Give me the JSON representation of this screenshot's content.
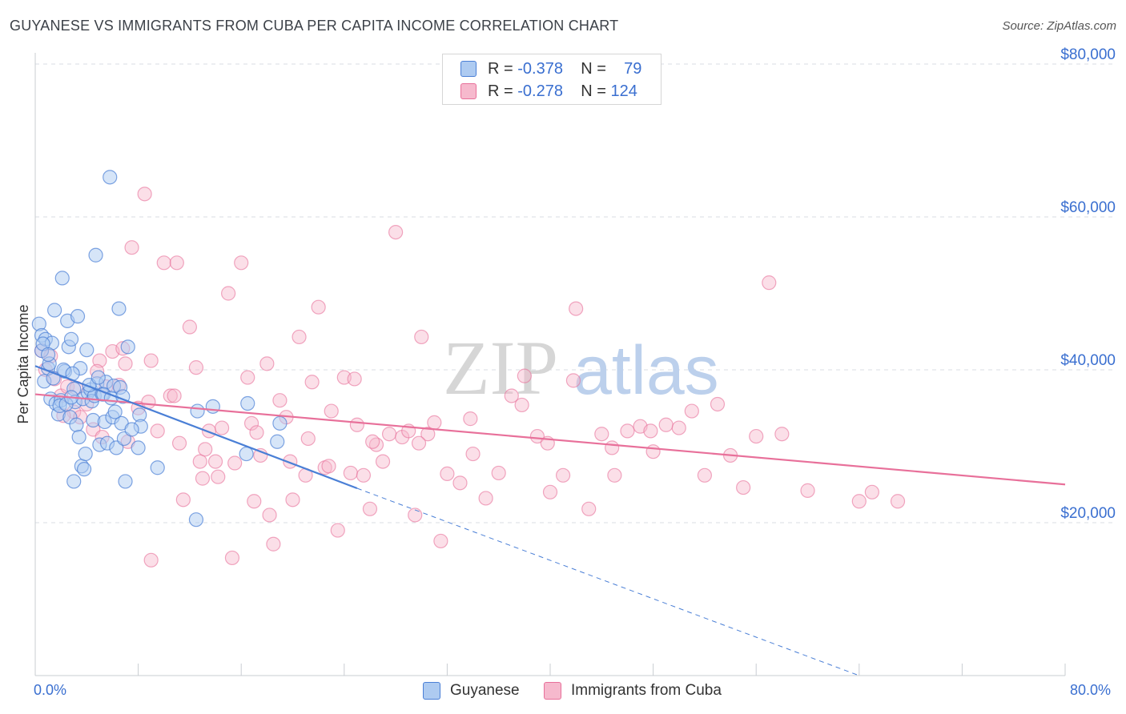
{
  "title": "GUYANESE VS IMMIGRANTS FROM CUBA PER CAPITA INCOME CORRELATION CHART",
  "source": "Source: ZipAtlas.com",
  "watermark": {
    "zip": "ZIP",
    "atlas": "atlas"
  },
  "legend_top": {
    "rows": [
      {
        "r_label": "R =",
        "r_value": "-0.378",
        "n_label": "N =",
        "n_value": "79"
      },
      {
        "r_label": "R =",
        "r_value": "-0.278",
        "n_label": "N =",
        "n_value": "124"
      }
    ]
  },
  "x_min_label": "0.0%",
  "x_max_label": "80.0%",
  "colors": {
    "blue": "#4a7fd6",
    "blue_fill": "#aecbf1",
    "pink": "#e8709a",
    "pink_fill": "#f6b9cd",
    "tick": "#3a6fd0",
    "grid": "#d9dde3"
  },
  "chart_data": {
    "type": "scatter",
    "title": "GUYANESE VS IMMIGRANTS FROM CUBA PER CAPITA INCOME CORRELATION CHART",
    "xlabel": "",
    "ylabel": "Per Capita Income",
    "xlim": [
      0,
      80
    ],
    "ylim": [
      0,
      80000
    ],
    "yticks": [
      20000,
      40000,
      60000,
      80000
    ],
    "ytick_labels": [
      "$20,000",
      "$40,000",
      "$60,000",
      "$80,000"
    ],
    "legend": [
      "Guyanese",
      "Immigrants from Cuba"
    ],
    "series": [
      {
        "name": "Guyanese",
        "r": -0.378,
        "n": 79,
        "trend": {
          "x": [
            0,
            25
          ],
          "y": [
            40500,
            24500
          ],
          "dashed_to": [
            64,
            0
          ]
        },
        "points": [
          [
            0.3,
            46000
          ],
          [
            0.5,
            44500
          ],
          [
            0.5,
            42500
          ],
          [
            0.8,
            44000
          ],
          [
            1.0,
            40200
          ],
          [
            0.7,
            38500
          ],
          [
            1.2,
            36200
          ],
          [
            1.3,
            43500
          ],
          [
            1.5,
            47800
          ],
          [
            1.6,
            35600
          ],
          [
            1.8,
            34200
          ],
          [
            2.0,
            36000
          ],
          [
            2.1,
            52000
          ],
          [
            2.3,
            39800
          ],
          [
            2.5,
            46400
          ],
          [
            2.6,
            43000
          ],
          [
            2.7,
            33800
          ],
          [
            2.8,
            44000
          ],
          [
            3.0,
            37500
          ],
          [
            3.1,
            35800
          ],
          [
            3.2,
            32800
          ],
          [
            3.3,
            47000
          ],
          [
            3.5,
            40200
          ],
          [
            3.6,
            27400
          ],
          [
            3.7,
            36200
          ],
          [
            3.9,
            29000
          ],
          [
            4.0,
            42600
          ],
          [
            4.1,
            37000
          ],
          [
            4.3,
            37400
          ],
          [
            4.4,
            35900
          ],
          [
            4.5,
            33400
          ],
          [
            4.6,
            36600
          ],
          [
            4.7,
            55000
          ],
          [
            4.8,
            38200
          ],
          [
            5.0,
            30200
          ],
          [
            5.2,
            36800
          ],
          [
            5.4,
            33200
          ],
          [
            5.5,
            38400
          ],
          [
            5.6,
            30400
          ],
          [
            5.8,
            65200
          ],
          [
            6.0,
            33800
          ],
          [
            6.1,
            37900
          ],
          [
            6.3,
            29800
          ],
          [
            6.5,
            48000
          ],
          [
            6.7,
            33000
          ],
          [
            6.9,
            31000
          ],
          [
            7.0,
            25400
          ],
          [
            7.2,
            43000
          ],
          [
            8.0,
            29800
          ],
          [
            8.1,
            34100
          ],
          [
            8.2,
            32600
          ],
          [
            9.5,
            27200
          ],
          [
            12.5,
            20400
          ],
          [
            12.6,
            34600
          ],
          [
            13.8,
            35200
          ],
          [
            16.5,
            35600
          ],
          [
            18.8,
            30600
          ],
          [
            19.0,
            33000
          ],
          [
            16.4,
            29000
          ],
          [
            0.6,
            43400
          ],
          [
            1.1,
            40800
          ],
          [
            1.4,
            38900
          ],
          [
            1.9,
            35300
          ],
          [
            2.2,
            40000
          ],
          [
            2.4,
            35500
          ],
          [
            2.9,
            39500
          ],
          [
            3.4,
            31200
          ],
          [
            3.8,
            27000
          ],
          [
            4.2,
            38000
          ],
          [
            4.9,
            39000
          ],
          [
            5.3,
            36800
          ],
          [
            5.9,
            36300
          ],
          [
            6.2,
            34500
          ],
          [
            6.6,
            37700
          ],
          [
            6.8,
            36500
          ],
          [
            7.5,
            32200
          ],
          [
            2.8,
            36400
          ],
          [
            1.0,
            42000
          ],
          [
            3.0,
            25400
          ]
        ]
      },
      {
        "name": "Immigrants from Cuba",
        "r": -0.278,
        "n": 124,
        "trend": {
          "x": [
            0,
            80
          ],
          "y": [
            36800,
            25000
          ]
        },
        "points": [
          [
            0.5,
            42500
          ],
          [
            0.8,
            40000
          ],
          [
            1.2,
            41800
          ],
          [
            1.5,
            38800
          ],
          [
            2.0,
            36600
          ],
          [
            2.5,
            37800
          ],
          [
            3.0,
            34500
          ],
          [
            3.5,
            33800
          ],
          [
            4.0,
            35500
          ],
          [
            4.5,
            32200
          ],
          [
            5.0,
            41200
          ],
          [
            5.5,
            37800
          ],
          [
            6.0,
            42400
          ],
          [
            6.5,
            38000
          ],
          [
            7.0,
            40800
          ],
          [
            7.5,
            56000
          ],
          [
            8.0,
            35000
          ],
          [
            8.5,
            63000
          ],
          [
            9.0,
            41200
          ],
          [
            9.5,
            32000
          ],
          [
            10.0,
            54000
          ],
          [
            10.5,
            36600
          ],
          [
            11.0,
            54000
          ],
          [
            11.5,
            23000
          ],
          [
            12.0,
            45600
          ],
          [
            12.5,
            40300
          ],
          [
            13.0,
            25800
          ],
          [
            13.5,
            32000
          ],
          [
            14.0,
            28000
          ],
          [
            14.5,
            32400
          ],
          [
            15.0,
            50000
          ],
          [
            15.5,
            27800
          ],
          [
            16.0,
            54000
          ],
          [
            16.5,
            39000
          ],
          [
            17.0,
            22800
          ],
          [
            17.5,
            28800
          ],
          [
            18.0,
            40800
          ],
          [
            18.5,
            17200
          ],
          [
            19.0,
            36000
          ],
          [
            19.5,
            33800
          ],
          [
            20.0,
            23000
          ],
          [
            20.5,
            44300
          ],
          [
            21.0,
            26200
          ],
          [
            21.5,
            38400
          ],
          [
            22.0,
            48200
          ],
          [
            22.5,
            27200
          ],
          [
            23.0,
            34600
          ],
          [
            23.5,
            19000
          ],
          [
            24.0,
            39000
          ],
          [
            24.5,
            26500
          ],
          [
            25.0,
            32800
          ],
          [
            25.5,
            26200
          ],
          [
            26.0,
            21800
          ],
          [
            26.5,
            30200
          ],
          [
            27.0,
            28000
          ],
          [
            27.5,
            31600
          ],
          [
            28.0,
            58000
          ],
          [
            28.5,
            31200
          ],
          [
            29.0,
            32000
          ],
          [
            29.5,
            21000
          ],
          [
            30.0,
            44300
          ],
          [
            30.5,
            31600
          ],
          [
            31.0,
            33100
          ],
          [
            31.5,
            17600
          ],
          [
            32.0,
            26400
          ],
          [
            33.0,
            25200
          ],
          [
            34.0,
            29000
          ],
          [
            35.0,
            23200
          ],
          [
            36.0,
            26500
          ],
          [
            37.0,
            36600
          ],
          [
            38.0,
            39200
          ],
          [
            39.0,
            31300
          ],
          [
            40.0,
            24000
          ],
          [
            41.0,
            26200
          ],
          [
            42.0,
            48000
          ],
          [
            43.0,
            21800
          ],
          [
            44.0,
            31600
          ],
          [
            45.0,
            26200
          ],
          [
            46.0,
            32000
          ],
          [
            47.0,
            32600
          ],
          [
            48.0,
            29300
          ],
          [
            49.0,
            32800
          ],
          [
            50.0,
            32400
          ],
          [
            51.0,
            34600
          ],
          [
            52.0,
            26200
          ],
          [
            53.0,
            35500
          ],
          [
            54.0,
            28800
          ],
          [
            55.0,
            24600
          ],
          [
            56.0,
            31300
          ],
          [
            57.0,
            51400
          ],
          [
            58.0,
            31600
          ],
          [
            60.0,
            24200
          ],
          [
            64.0,
            22800
          ],
          [
            65.0,
            24000
          ],
          [
            67.0,
            22800
          ],
          [
            9.0,
            15100
          ],
          [
            15.3,
            15400
          ],
          [
            3.2,
            37600
          ],
          [
            4.8,
            39800
          ],
          [
            6.8,
            42800
          ],
          [
            8.8,
            35800
          ],
          [
            10.8,
            36600
          ],
          [
            12.8,
            28000
          ],
          [
            14.2,
            26000
          ],
          [
            16.8,
            33000
          ],
          [
            18.2,
            21000
          ],
          [
            19.8,
            28000
          ],
          [
            21.2,
            31000
          ],
          [
            22.8,
            27400
          ],
          [
            24.8,
            38800
          ],
          [
            26.2,
            30600
          ],
          [
            29.8,
            30400
          ],
          [
            33.8,
            33600
          ],
          [
            37.8,
            35400
          ],
          [
            39.8,
            30400
          ],
          [
            41.8,
            38600
          ],
          [
            44.8,
            29800
          ],
          [
            47.8,
            32000
          ],
          [
            2.2,
            34000
          ],
          [
            5.2,
            31200
          ],
          [
            7.2,
            30600
          ],
          [
            11.2,
            30400
          ],
          [
            13.2,
            29600
          ],
          [
            17.2,
            31800
          ]
        ]
      }
    ]
  }
}
